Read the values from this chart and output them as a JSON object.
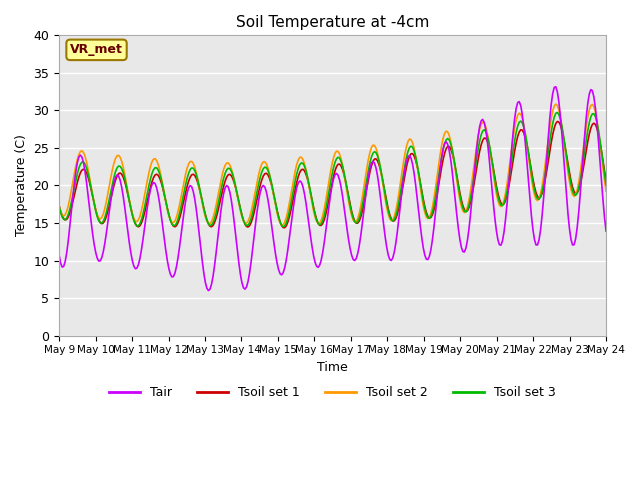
{
  "title": "Soil Temperature at -4cm",
  "xlabel": "Time",
  "ylabel": "Temperature (C)",
  "ylim": [
    0,
    40
  ],
  "x_tick_labels": [
    "May 9",
    "May 10",
    "May 11",
    "May 12",
    "May 13",
    "May 14",
    "May 15",
    "May 16",
    "May 17",
    "May 18",
    "May 19",
    "May 20",
    "May 21",
    "May 22",
    "May 23",
    "May 24"
  ],
  "legend_labels": [
    "Tair",
    "Tsoil set 1",
    "Tsoil set 2",
    "Tsoil set 3"
  ],
  "colors": {
    "Tair": "#cc00ff",
    "Tsoil_set1": "#cc0000",
    "Tsoil_set2": "#ff9900",
    "Tsoil_set3": "#00bb00"
  },
  "background_color": "#e8e8e8",
  "annotation_text": "VR_met",
  "annotation_bg": "#ffff99",
  "annotation_border": "#997700"
}
